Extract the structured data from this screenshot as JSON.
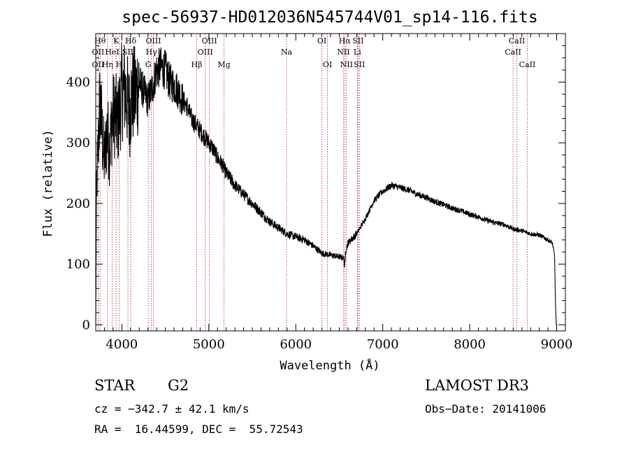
{
  "chart_data": {
    "type": "line",
    "title": "spec-56937-HD012036N545744V01_sp14-116.fits",
    "xlabel": "Wavelength (Å)",
    "ylabel": "Flux (relative)",
    "xlim": [
      3700,
      9100
    ],
    "ylim": [
      -10,
      480
    ],
    "xticks": [
      4000,
      5000,
      6000,
      7000,
      8000,
      9000
    ],
    "yticks": [
      0,
      100,
      200,
      300,
      400
    ],
    "grid": false,
    "series": [
      {
        "name": "flux",
        "anchors": [
          [
            3700,
            0
          ],
          [
            3710,
            230
          ],
          [
            3730,
            300
          ],
          [
            3750,
            370
          ],
          [
            3780,
            300
          ],
          [
            3800,
            270
          ],
          [
            3830,
            320
          ],
          [
            3860,
            290
          ],
          [
            3890,
            340
          ],
          [
            3920,
            350
          ],
          [
            3950,
            330
          ],
          [
            3980,
            360
          ],
          [
            4000,
            385
          ],
          [
            4030,
            390
          ],
          [
            4060,
            370
          ],
          [
            4090,
            350
          ],
          [
            4110,
            375
          ],
          [
            4150,
            380
          ],
          [
            4200,
            400
          ],
          [
            4250,
            385
          ],
          [
            4300,
            370
          ],
          [
            4350,
            390
          ],
          [
            4400,
            420
          ],
          [
            4450,
            425
          ],
          [
            4500,
            420
          ],
          [
            4550,
            400
          ],
          [
            4600,
            395
          ],
          [
            4650,
            385
          ],
          [
            4700,
            370
          ],
          [
            4750,
            360
          ],
          [
            4800,
            340
          ],
          [
            4850,
            330
          ],
          [
            4900,
            320
          ],
          [
            4950,
            310
          ],
          [
            5000,
            300
          ],
          [
            5050,
            290
          ],
          [
            5100,
            275
          ],
          [
            5150,
            265
          ],
          [
            5200,
            250
          ],
          [
            5300,
            230
          ],
          [
            5400,
            215
          ],
          [
            5500,
            200
          ],
          [
            5600,
            185
          ],
          [
            5700,
            170
          ],
          [
            5800,
            160
          ],
          [
            5900,
            150
          ],
          [
            6000,
            145
          ],
          [
            6100,
            140
          ],
          [
            6200,
            130
          ],
          [
            6300,
            118
          ],
          [
            6400,
            115
          ],
          [
            6500,
            112
          ],
          [
            6550,
            110
          ],
          [
            6600,
            135
          ],
          [
            6700,
            150
          ],
          [
            6800,
            175
          ],
          [
            6900,
            205
          ],
          [
            7000,
            220
          ],
          [
            7100,
            230
          ],
          [
            7200,
            226
          ],
          [
            7300,
            222
          ],
          [
            7400,
            215
          ],
          [
            7500,
            210
          ],
          [
            7600,
            203
          ],
          [
            7700,
            198
          ],
          [
            7800,
            192
          ],
          [
            7900,
            188
          ],
          [
            8000,
            182
          ],
          [
            8100,
            178
          ],
          [
            8200,
            172
          ],
          [
            8300,
            168
          ],
          [
            8400,
            165
          ],
          [
            8500,
            158
          ],
          [
            8600,
            155
          ],
          [
            8700,
            150
          ],
          [
            8800,
            148
          ],
          [
            8900,
            140
          ],
          [
            8950,
            135
          ],
          [
            8975,
            115
          ],
          [
            8985,
            40
          ],
          [
            8995,
            0
          ]
        ],
        "note": "noisy spectrum; anchor points estimated from the plotted curve"
      }
    ],
    "spectral_lines": [
      {
        "label": "OII",
        "x": 3727,
        "row": 2
      },
      {
        "label": "Hθ",
        "x": 3750,
        "row": 1
      },
      {
        "label": "OII",
        "x": 3727,
        "row": 3
      },
      {
        "label": "Hη",
        "x": 3835,
        "row": 3
      },
      {
        "label": "HeI",
        "x": 3889,
        "row": 2
      },
      {
        "label": "K",
        "x": 3934,
        "row": 1
      },
      {
        "label": "SII",
        "x": 4070,
        "row": 2
      },
      {
        "label": "H",
        "x": 3969,
        "row": 3
      },
      {
        "label": "Hδ",
        "x": 4102,
        "row": 1
      },
      {
        "label": "OIII",
        "x": 4363,
        "row": 1
      },
      {
        "label": "Hγ",
        "x": 4340,
        "row": 2
      },
      {
        "label": "G",
        "x": 4304,
        "row": 3
      },
      {
        "label": "Hβ",
        "x": 4861,
        "row": 3
      },
      {
        "label": "OIII",
        "x": 5007,
        "row": 1
      },
      {
        "label": "OIII",
        "x": 4959,
        "row": 2
      },
      {
        "label": "Mg",
        "x": 5175,
        "row": 3
      },
      {
        "label": "Na",
        "x": 5894,
        "row": 2
      },
      {
        "label": "OI",
        "x": 6300,
        "row": 1
      },
      {
        "label": "OI",
        "x": 6364,
        "row": 3
      },
      {
        "label": "Hα",
        "x": 6563,
        "row": 1
      },
      {
        "label": "NII",
        "x": 6548,
        "row": 2
      },
      {
        "label": "NII",
        "x": 6583,
        "row": 3
      },
      {
        "label": "SII",
        "x": 6716,
        "row": 1
      },
      {
        "label": "Li",
        "x": 6708,
        "row": 2
      },
      {
        "label": "SII",
        "x": 6731,
        "row": 3
      },
      {
        "label": "CaII",
        "x": 8498,
        "row": 2
      },
      {
        "label": "CaII",
        "x": 8542,
        "row": 1
      },
      {
        "label": "CaII",
        "x": 8662,
        "row": 3
      }
    ]
  },
  "info": {
    "object_type": "STAR",
    "subclass": "G2",
    "survey": "LAMOST DR3",
    "cz": "cz = −342.7 ± 42.1 km/s",
    "obs_date": "Obs−Date: 20141006",
    "coords": "RA =  16.44599, DEC =  55.72543"
  },
  "colors": {
    "curve": "#000000",
    "marker_lines": "#b22222",
    "axes": "#000000"
  }
}
